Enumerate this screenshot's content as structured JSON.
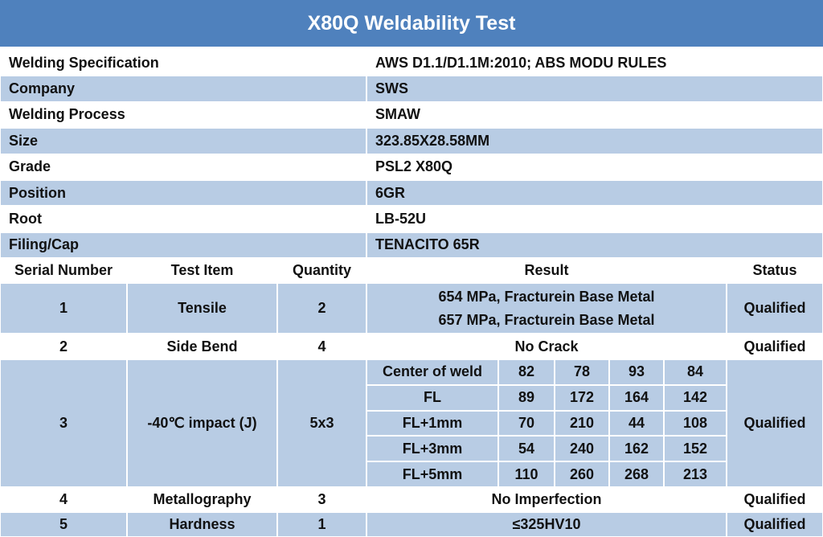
{
  "header": {
    "title": "X80Q Weldability Test"
  },
  "info": {
    "rows": [
      [
        "Welding Specification",
        "AWS D1.1/D1.1M:2010; ABS MODU RULES"
      ],
      [
        "Company",
        "SWS"
      ],
      [
        "Welding Process",
        "SMAW"
      ],
      [
        "Size",
        "323.85X28.58MM"
      ],
      [
        "Grade",
        "PSL2 X80Q"
      ],
      [
        "Position",
        "6GR"
      ],
      [
        "Root",
        "LB-52U"
      ],
      [
        "Filing/Cap",
        "TENACITO 65R"
      ]
    ]
  },
  "tests": {
    "columns": [
      "Serial Number",
      "Test Item",
      "Quantity",
      "Result",
      "Status"
    ],
    "rows": [
      {
        "serial": 1,
        "item": "Tensile",
        "quantity": 2,
        "result": [
          "654 MPa, Fracturein Base Metal",
          "657 MPa, Fracturein Base Metal"
        ],
        "status": "Qualified"
      },
      {
        "serial": 2,
        "item": "Side Bend",
        "quantity": 4,
        "result": "No Crack",
        "status": "Qualified"
      },
      {
        "serial": 3,
        "item": "-40℃  impact (J)",
        "quantity": "5x3",
        "result": [
          [
            "Center of weld",
            82,
            78,
            93,
            84
          ],
          [
            "FL",
            89,
            172,
            164,
            142
          ],
          [
            "FL+1mm",
            70,
            210,
            44,
            108
          ],
          [
            "FL+3mm",
            54,
            240,
            162,
            152
          ],
          [
            "FL+5mm",
            110,
            260,
            268,
            213
          ]
        ],
        "status": "Qualified"
      },
      {
        "serial": 4,
        "item": "Metallography",
        "quantity": 3,
        "result": "No Imperfection",
        "status": "Qualified"
      },
      {
        "serial": 5,
        "item": "Hardness",
        "quantity": 1,
        "result": "≤325HV10",
        "status": "Qualified"
      }
    ]
  }
}
